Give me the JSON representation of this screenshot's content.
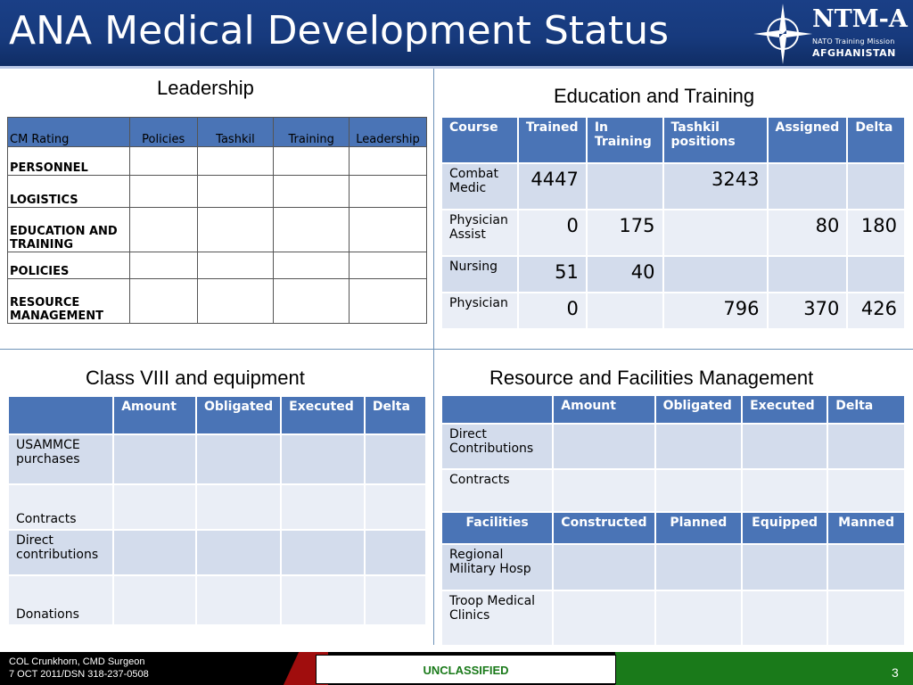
{
  "header": {
    "title": "ANA Medical Development Status",
    "logo_name": "NTM-A",
    "logo_sub": "NATO Training Mission",
    "logo_country": "AFGHANISTAN",
    "logo_icon": "nato-compass-star-icon"
  },
  "leadership": {
    "title": "Leadership",
    "headers": [
      "CM Rating",
      "Policies",
      "Tashkil",
      "Training",
      "Leadership"
    ],
    "rows": [
      "PERSONNEL",
      "LOGISTICS",
      "EDUCATION AND TRAINING",
      "POLICIES",
      "RESOURCE MANAGEMENT"
    ]
  },
  "education": {
    "title": "Education and Training",
    "headers": [
      "Course",
      "Trained",
      "In Training",
      "Tashkil positions",
      "Assigned",
      "Delta"
    ],
    "rows": [
      {
        "course": "Combat Medic",
        "trained": "4447",
        "in_training": "",
        "tashkil": "3243",
        "assigned": "",
        "delta": ""
      },
      {
        "course": "Physician Assist",
        "trained": "0",
        "in_training": "175",
        "tashkil": "",
        "assigned": "80",
        "delta": "180"
      },
      {
        "course": "Nursing",
        "trained": "51",
        "in_training": "40",
        "tashkil": "",
        "assigned": "",
        "delta": ""
      },
      {
        "course": "Physician",
        "trained": "0",
        "in_training": "",
        "tashkil": "796",
        "assigned": "370",
        "delta": "426"
      }
    ]
  },
  "class_viii": {
    "title": "Class VIII and equipment",
    "headers": [
      "",
      "Amount",
      "Obligated",
      "Executed",
      "Delta"
    ],
    "rows": [
      "USAMMCE purchases",
      "Contracts",
      "Direct contributions",
      "Donations"
    ]
  },
  "resource": {
    "title": "Resource and Facilities Management",
    "headers": [
      "",
      "Amount",
      "Obligated",
      "Executed",
      "Delta"
    ],
    "rows": [
      "Direct Contributions",
      "Contracts"
    ],
    "facilities_headers": [
      "Facilities",
      "Constructed",
      "Planned",
      "Equipped",
      "Manned"
    ],
    "facilities_rows": [
      "Regional Military Hosp",
      "Troop Medical Clinics"
    ]
  },
  "footer": {
    "line1": "COL Crunkhorn, CMD Surgeon",
    "line2": "7 OCT 2011/DSN 318-237-0508",
    "classification": "UNCLASSIFIED",
    "page": "3"
  }
}
